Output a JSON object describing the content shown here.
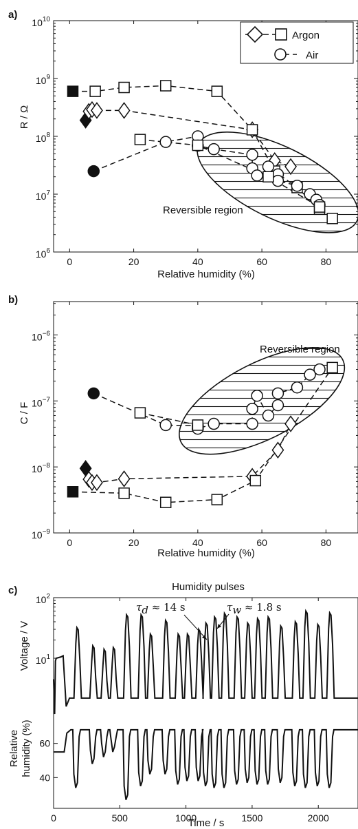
{
  "chart_data": [
    {
      "panel": "a)",
      "type": "scatter",
      "ylabel": "R / Ω",
      "xlabel": "Relative humidity (%)",
      "xlim": [
        -5,
        90
      ],
      "xticks": [
        "0",
        "20",
        "40",
        "60",
        "80"
      ],
      "ylim": [
        1000000.0,
        10000000000.0
      ],
      "yscale": "log",
      "yticks": [
        {
          "value": 10000000000.0,
          "base": "10",
          "exp": "10"
        },
        {
          "value": 1000000000.0,
          "base": "10",
          "exp": "9"
        },
        {
          "value": 100000000.0,
          "base": "10",
          "exp": "8"
        },
        {
          "value": 10000000.0,
          "base": "10",
          "exp": "7"
        },
        {
          "value": 1000000.0,
          "base": "10",
          "exp": "6"
        }
      ],
      "legend": {
        "position": "top-right",
        "entries": [
          "Argon",
          "Air"
        ]
      },
      "annotation": "Reversible region",
      "series": [
        {
          "name": "Argon",
          "marker": "diamond",
          "start": [
            5,
            190000000.0
          ],
          "points": [
            [
              6,
              270000000.0
            ],
            [
              7,
              290000000.0
            ],
            [
              8.5,
              280000000.0
            ],
            [
              17,
              280000000.0
            ],
            [
              57,
              130000000.0
            ],
            [
              64,
              38000000.0
            ],
            [
              69,
              30000000.0
            ]
          ]
        },
        {
          "name": "Argon",
          "marker": "square",
          "start": [
            1,
            600000000.0
          ],
          "points": [
            [
              8,
              600000000.0
            ],
            [
              17,
              700000000.0
            ],
            [
              30,
              750000000.0
            ],
            [
              46,
              600000000.0
            ],
            [
              57,
              130000000.0
            ],
            [
              64,
              25000000.0
            ],
            [
              71,
              13000000.0
            ],
            [
              78,
              5500000.0
            ],
            [
              82,
              3800000.0
            ]
          ]
        },
        {
          "name": "Air",
          "marker": "circle",
          "start": [
            7.5,
            25000000.0
          ],
          "points": [
            [
              30,
              80000000.0
            ],
            [
              40,
              100000000.0
            ],
            [
              40,
              69000000.0
            ],
            [
              45,
              60000000.0
            ],
            [
              57,
              48000000.0
            ],
            [
              57,
              28000000.0
            ],
            [
              58.5,
              21000000.0
            ],
            [
              62,
              30000000.0
            ],
            [
              65,
              22000000.0
            ],
            [
              65,
              17000000.0
            ],
            [
              71,
              14000000.0
            ],
            [
              75,
              10000000.0
            ],
            [
              77,
              8000000.0
            ],
            [
              78,
              6500000.0
            ]
          ]
        },
        {
          "name": "Air",
          "marker": "square",
          "points": [
            [
              22,
              88000000.0
            ],
            [
              40,
              70000000.0
            ],
            [
              62,
              20000000.0
            ],
            [
              78,
              6000000.0
            ]
          ]
        }
      ],
      "region": {
        "center": [
          65,
          16000000.0
        ],
        "angle": 26
      }
    },
    {
      "panel": "b)",
      "type": "scatter",
      "ylabel": "C / F",
      "xlabel": "Relative humidity (%)",
      "xlim": [
        -5,
        90
      ],
      "xticks": [
        "0",
        "20",
        "40",
        "60",
        "80"
      ],
      "ylim": [
        1e-09,
        3.2e-06
      ],
      "yscale": "log",
      "yticks": [
        {
          "value": 1e-06,
          "base": "10",
          "exp": "−6"
        },
        {
          "value": 1e-07,
          "base": "10",
          "exp": "−7"
        },
        {
          "value": 1e-08,
          "base": "10",
          "exp": "−8"
        },
        {
          "value": 1e-09,
          "base": "10",
          "exp": "−9"
        }
      ],
      "annotation": "Reversible region",
      "series": [
        {
          "name": "Argon",
          "marker": "diamond",
          "start": [
            5,
            9.5e-09
          ],
          "points": [
            [
              6,
              6.5e-09
            ],
            [
              7,
              5.8e-09
            ],
            [
              8.5,
              5.8e-09
            ],
            [
              17,
              6.6e-09
            ],
            [
              57,
              7.2e-09
            ],
            [
              65,
              1.8e-08
            ],
            [
              69,
              4.5e-08
            ]
          ]
        },
        {
          "name": "Argon",
          "marker": "square",
          "start": [
            1,
            4.2e-09
          ],
          "points": [
            [
              17,
              4e-09
            ],
            [
              30,
              2.9e-09
            ],
            [
              46,
              3.2e-09
            ],
            [
              58,
              6.2e-09
            ],
            [
              82,
              3.2e-07
            ]
          ]
        },
        {
          "name": "Air",
          "marker": "circle",
          "start": [
            7.5,
            1.3e-07
          ],
          "points": [
            [
              30,
              4.3e-08
            ],
            [
              40,
              4.2e-08
            ],
            [
              40,
              3.8e-08
            ],
            [
              45,
              4.5e-08
            ],
            [
              57,
              4.5e-08
            ],
            [
              57,
              7.6e-08
            ],
            [
              58.5,
              1.2e-07
            ],
            [
              62,
              6e-08
            ],
            [
              65,
              8.6e-08
            ],
            [
              65,
              1.3e-07
            ],
            [
              71,
              1.6e-07
            ],
            [
              75,
              2.5e-07
            ],
            [
              78,
              3e-07
            ]
          ]
        },
        {
          "name": "Air",
          "marker": "square",
          "points": [
            [
              22,
              6.6e-08
            ],
            [
              40,
              4.3e-08
            ]
          ]
        }
      ],
      "region": {
        "center": [
          60,
          1e-07
        ],
        "angle": -27
      }
    },
    {
      "panel": "c)",
      "type": "line",
      "title": "Humidity pulses",
      "xlabel": "Time / s",
      "xlim": [
        0,
        2300
      ],
      "xticks": [
        "0",
        "500",
        "1000",
        "1500",
        "2000"
      ],
      "voltage": {
        "ylabel": "Voltage / V",
        "yscale": "log",
        "ylim": [
          1,
          100
        ],
        "yticks": [
          {
            "value": 100,
            "base": "10",
            "exp": "2"
          },
          {
            "value": 10,
            "base": "10",
            "exp": "1"
          }
        ],
        "baseline": 2.2,
        "pulses": [
          [
            180,
            32
          ],
          [
            300,
            16
          ],
          [
            385,
            14
          ],
          [
            455,
            15
          ],
          [
            555,
            52
          ],
          [
            665,
            52
          ],
          [
            735,
            25
          ],
          [
            850,
            42
          ],
          [
            945,
            25
          ],
          [
            1015,
            25
          ],
          [
            1100,
            30
          ],
          [
            1155,
            38
          ],
          [
            1220,
            48
          ],
          [
            1295,
            55
          ],
          [
            1390,
            48
          ],
          [
            1470,
            38
          ],
          [
            1545,
            45
          ],
          [
            1625,
            48
          ],
          [
            1720,
            34
          ],
          [
            1830,
            40
          ],
          [
            1910,
            60
          ],
          [
            2000,
            36
          ],
          [
            2090,
            56
          ]
        ]
      },
      "humidity": {
        "ylabel_lines": [
          "Relative",
          "humidity (%)"
        ],
        "ylim": [
          22,
          78
        ],
        "yticks": [
          "40",
          "60"
        ],
        "baseline": 68,
        "dips": [
          [
            175,
            34
          ],
          [
            300,
            48
          ],
          [
            385,
            52
          ],
          [
            455,
            55
          ],
          [
            555,
            27
          ],
          [
            665,
            35
          ],
          [
            735,
            42
          ],
          [
            850,
            42
          ],
          [
            945,
            36
          ],
          [
            1015,
            38
          ],
          [
            1100,
            38
          ],
          [
            1155,
            35
          ],
          [
            1220,
            34
          ],
          [
            1295,
            34
          ],
          [
            1390,
            36
          ],
          [
            1470,
            37
          ],
          [
            1545,
            36
          ],
          [
            1625,
            36
          ],
          [
            1720,
            37
          ],
          [
            1830,
            35
          ],
          [
            1910,
            34
          ],
          [
            2000,
            35
          ],
          [
            2090,
            34
          ]
        ]
      },
      "annotations": [
        {
          "symbol": "τ",
          "sub": "d",
          "text": " ≈ 14 s"
        },
        {
          "symbol": "τ",
          "sub": "w",
          "text": " ≈ 1.8 s"
        }
      ]
    }
  ]
}
